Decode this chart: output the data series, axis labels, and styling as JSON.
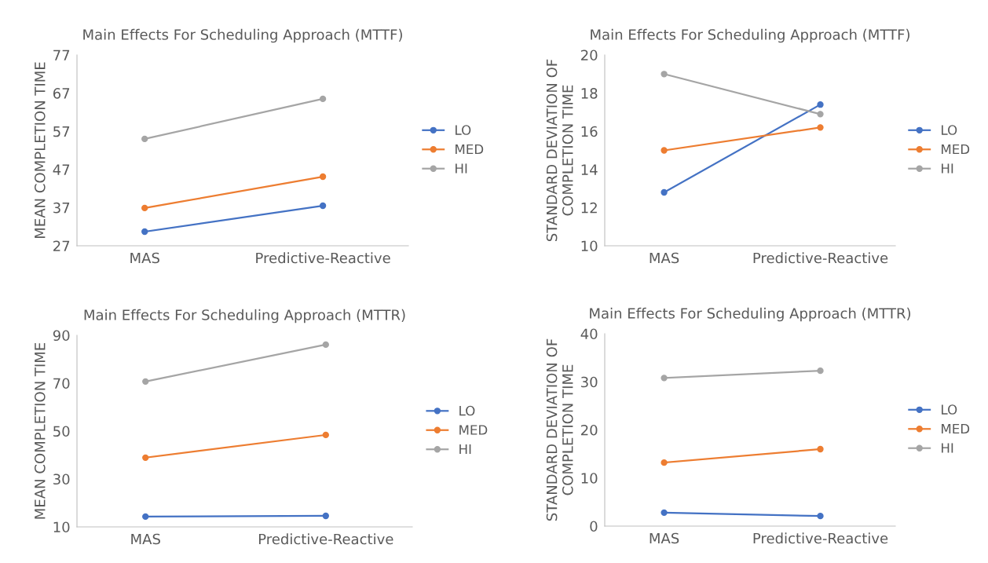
{
  "chart_data": [
    {
      "type": "line",
      "title": "Main Effects For Scheduling Approach (MTTF)",
      "ylabel": "MEAN COMPLETION TIME",
      "categories": [
        "MAS",
        "Predictive-Reactive"
      ],
      "ylim": [
        27,
        77
      ],
      "yticks": [
        27,
        37,
        47,
        57,
        67,
        77
      ],
      "marker": "circle",
      "legend": "right",
      "grid": false,
      "series": [
        {
          "name": "LO",
          "color": "#4472c4",
          "values": [
            30.7,
            37.5
          ]
        },
        {
          "name": "MED",
          "color": "#ed7d31",
          "values": [
            36.9,
            45.1
          ]
        },
        {
          "name": "HI",
          "color": "#a5a5a5",
          "values": [
            55.0,
            65.5
          ]
        }
      ]
    },
    {
      "type": "line",
      "title": "Main Effects For Scheduling Approach (MTTF)",
      "ylabel": "STANDARD DEVIATION OF\nCOMPLETION TIME",
      "categories": [
        "MAS",
        "Predictive-Reactive"
      ],
      "ylim": [
        10,
        20
      ],
      "yticks": [
        10,
        12,
        14,
        16,
        18,
        20
      ],
      "marker": "circle",
      "legend": "right",
      "grid": false,
      "series": [
        {
          "name": "LO",
          "color": "#4472c4",
          "values": [
            12.8,
            17.4
          ]
        },
        {
          "name": "MED",
          "color": "#ed7d31",
          "values": [
            15.0,
            16.2
          ]
        },
        {
          "name": "HI",
          "color": "#a5a5a5",
          "values": [
            19.0,
            16.9
          ]
        }
      ]
    },
    {
      "type": "line",
      "title": "Main Effects For Scheduling Approach (MTTR)",
      "ylabel": "MEAN COMPLETION TIME",
      "categories": [
        "MAS",
        "Predictive-Reactive"
      ],
      "ylim": [
        10,
        90
      ],
      "yticks": [
        10,
        30,
        50,
        70,
        90
      ],
      "marker": "circle",
      "legend": "right",
      "grid": false,
      "series": [
        {
          "name": "LO",
          "color": "#4472c4",
          "values": [
            14.3,
            14.6
          ]
        },
        {
          "name": "MED",
          "color": "#ed7d31",
          "values": [
            38.9,
            48.4
          ]
        },
        {
          "name": "HI",
          "color": "#a5a5a5",
          "values": [
            70.7,
            86.1
          ]
        }
      ]
    },
    {
      "type": "line",
      "title": "Main Effects For Scheduling Approach (MTTR)",
      "ylabel": "STANDARD DEVIATION OF\nCOMPLETION TIME",
      "categories": [
        "MAS",
        "Predictive-Reactive"
      ],
      "ylim": [
        0,
        40
      ],
      "yticks": [
        0,
        10,
        20,
        30,
        40
      ],
      "marker": "circle",
      "legend": "right",
      "grid": false,
      "series": [
        {
          "name": "LO",
          "color": "#4472c4",
          "values": [
            2.8,
            2.1
          ]
        },
        {
          "name": "MED",
          "color": "#ed7d31",
          "values": [
            13.2,
            16.0
          ]
        },
        {
          "name": "HI",
          "color": "#a5a5a5",
          "values": [
            30.8,
            32.3
          ]
        }
      ]
    }
  ]
}
